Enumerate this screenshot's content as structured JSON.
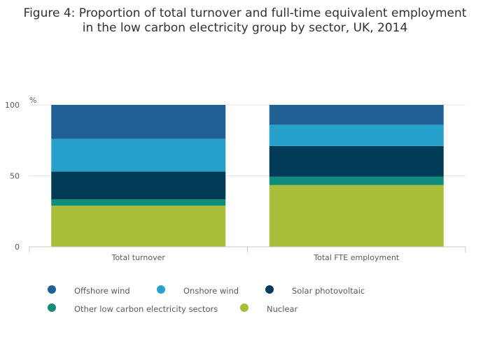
{
  "chart_data": {
    "type": "bar",
    "stacked": true,
    "title_line1": "Figure 4: Proportion of total turnover and full-time equivalent employment",
    "title_line2": "in the low carbon electricity group by sector, UK, 2014",
    "ylabel": "%",
    "ylim": [
      0,
      100
    ],
    "yticks": [
      0,
      50,
      100
    ],
    "grid": true,
    "legend_position": "bottom",
    "categories": [
      "Total turnover",
      "Total FTE employment"
    ],
    "series": [
      {
        "name": "Nuclear",
        "color": "#a8bd3a",
        "values": [
          29,
          43.5
        ]
      },
      {
        "name": "Other low carbon electricity sectors",
        "color": "#118c7b",
        "values": [
          4.5,
          6
        ]
      },
      {
        "name": "Solar photovoltaic",
        "color": "#003c57",
        "values": [
          19.5,
          21.5
        ]
      },
      {
        "name": "Onshore wind",
        "color": "#27a0cc",
        "values": [
          23,
          15
        ]
      },
      {
        "name": "Offshore wind",
        "color": "#206095",
        "values": [
          24,
          14
        ]
      }
    ],
    "legend_order": [
      "Offshore wind",
      "Onshore wind",
      "Solar photovoltaic",
      "Other low carbon electricity sectors",
      "Nuclear"
    ]
  }
}
